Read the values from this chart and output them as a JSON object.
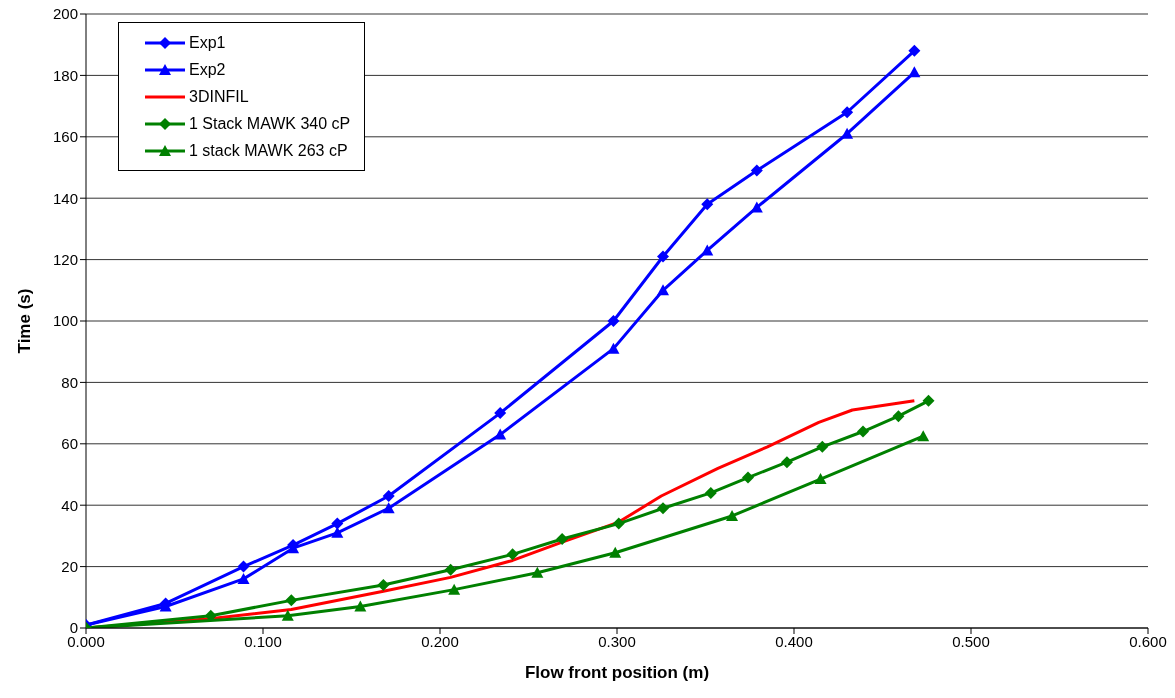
{
  "chart_data": {
    "type": "line",
    "xlabel": "Flow front position (m)",
    "ylabel": "Time (s)",
    "xlim": [
      0,
      0.6
    ],
    "xticks": [
      {
        "value": 0,
        "label": "0.000"
      },
      {
        "value": 0.1,
        "label": "0.100"
      },
      {
        "value": 0.2,
        "label": "0.200"
      },
      {
        "value": 0.3,
        "label": "0.300"
      },
      {
        "value": 0.4,
        "label": "0.400"
      },
      {
        "value": 0.5,
        "label": "0.500"
      },
      {
        "value": 0.6,
        "label": "0.600"
      }
    ],
    "ylim": [
      0,
      200
    ],
    "yticks": [
      0,
      20,
      40,
      60,
      80,
      100,
      120,
      140,
      160,
      180,
      200
    ],
    "grid": "y",
    "legend": "top left",
    "series": [
      {
        "name": "Exp1",
        "color": "#0000ff",
        "marker": "diamond",
        "x": [
          0,
          0.045,
          0.089,
          0.117,
          0.142,
          0.171,
          0.234,
          0.298,
          0.326,
          0.351,
          0.379,
          0.43,
          0.468
        ],
        "values": [
          1,
          8,
          20,
          27,
          34,
          43,
          70,
          100,
          121,
          138,
          149,
          168,
          188
        ]
      },
      {
        "name": "Exp2",
        "color": "#0000ff",
        "marker": "triangle",
        "x": [
          0,
          0.045,
          0.089,
          0.117,
          0.142,
          0.171,
          0.234,
          0.298,
          0.326,
          0.351,
          0.379,
          0.43,
          0.468
        ],
        "values": [
          1,
          7,
          16,
          26,
          31,
          39,
          63,
          91,
          110,
          123,
          137,
          161,
          181
        ]
      },
      {
        "name": "3DINFIL",
        "color": "#ff0000",
        "marker": "none",
        "x": [
          0,
          0.07,
          0.116,
          0.168,
          0.206,
          0.241,
          0.269,
          0.301,
          0.325,
          0.357,
          0.385,
          0.414,
          0.433,
          0.468
        ],
        "values": [
          0,
          3,
          6,
          12,
          16.5,
          22,
          28,
          34.5,
          43,
          52,
          59,
          67,
          71,
          74
        ]
      },
      {
        "name": "1 Stack MAWK 340 cP",
        "color": "#008000",
        "marker": "diamond",
        "x": [
          0,
          0.0705,
          0.116,
          0.168,
          0.206,
          0.241,
          0.269,
          0.301,
          0.326,
          0.353,
          0.374,
          0.396,
          0.416,
          0.439,
          0.459,
          0.476
        ],
        "values": [
          0,
          4,
          9,
          14,
          19,
          24,
          29,
          34,
          39,
          44,
          49,
          54,
          59,
          64,
          69,
          74
        ]
      },
      {
        "name": "1 stack MAWK 263 cP",
        "color": "#008000",
        "marker": "triangle",
        "x": [
          0,
          0.114,
          0.155,
          0.208,
          0.255,
          0.299,
          0.365,
          0.415,
          0.473
        ],
        "values": [
          0,
          4,
          7,
          12.5,
          18,
          24.5,
          36.5,
          48.5,
          62.5
        ]
      }
    ]
  }
}
